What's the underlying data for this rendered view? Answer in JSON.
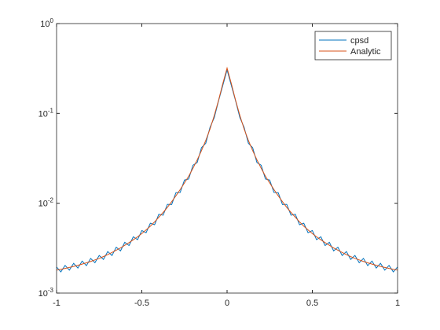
{
  "chart_data": {
    "type": "line",
    "log_y": true,
    "x": [
      -1,
      -0.975,
      -0.95,
      -0.925,
      -0.9,
      -0.875,
      -0.85,
      -0.825,
      -0.8,
      -0.775,
      -0.75,
      -0.725,
      -0.7,
      -0.675,
      -0.65,
      -0.625,
      -0.6,
      -0.575,
      -0.55,
      -0.525,
      -0.5,
      -0.475,
      -0.45,
      -0.425,
      -0.4,
      -0.375,
      -0.35,
      -0.325,
      -0.3,
      -0.275,
      -0.25,
      -0.225,
      -0.2,
      -0.175,
      -0.15,
      -0.125,
      -0.1,
      -0.075,
      -0.05,
      -0.025,
      0,
      0.025,
      0.05,
      0.075,
      0.1,
      0.125,
      0.15,
      0.175,
      0.2,
      0.225,
      0.25,
      0.275,
      0.3,
      0.325,
      0.35,
      0.375,
      0.4,
      0.425,
      0.45,
      0.475,
      0.5,
      0.525,
      0.55,
      0.575,
      0.6,
      0.625,
      0.65,
      0.675,
      0.7,
      0.725,
      0.75,
      0.775,
      0.8,
      0.825,
      0.85,
      0.875,
      0.9,
      0.925,
      0.95,
      0.975,
      1
    ],
    "series": [
      {
        "name": "cpsd",
        "color": "#0072bd",
        "values": [
          0.00195,
          0.00172,
          0.00203,
          0.0018,
          0.00214,
          0.0019,
          0.00227,
          0.00202,
          0.00243,
          0.00218,
          0.00262,
          0.00237,
          0.0029,
          0.00262,
          0.00324,
          0.00295,
          0.00367,
          0.00338,
          0.00423,
          0.00393,
          0.00497,
          0.0047,
          0.00599,
          0.00577,
          0.00756,
          0.00735,
          0.00972,
          0.00967,
          0.0131,
          0.0132,
          0.0181,
          0.0186,
          0.0265,
          0.0284,
          0.0416,
          0.0465,
          0.07,
          0.09,
          0.138,
          0.205,
          0.305,
          0.205,
          0.138,
          0.09,
          0.07,
          0.0465,
          0.0416,
          0.0284,
          0.0265,
          0.0186,
          0.0181,
          0.0132,
          0.0131,
          0.00967,
          0.00972,
          0.00735,
          0.00756,
          0.00577,
          0.00599,
          0.0047,
          0.00497,
          0.00393,
          0.00423,
          0.00338,
          0.00367,
          0.00295,
          0.00324,
          0.00262,
          0.0029,
          0.00237,
          0.00262,
          0.00218,
          0.00243,
          0.00202,
          0.00227,
          0.0019,
          0.00214,
          0.0018,
          0.00203,
          0.00172,
          0.00195
        ]
      },
      {
        "name": "Analytic",
        "color": "#d95319",
        "values": [
          0.0018,
          0.00184,
          0.00188,
          0.00193,
          0.00198,
          0.00204,
          0.0021,
          0.00217,
          0.00225,
          0.00234,
          0.00243,
          0.00255,
          0.00268,
          0.00283,
          0.003,
          0.00318,
          0.0034,
          0.00364,
          0.00392,
          0.00423,
          0.0046,
          0.00505,
          0.00555,
          0.0062,
          0.007,
          0.0079,
          0.009,
          0.0104,
          0.0121,
          0.0142,
          0.0168,
          0.02,
          0.0245,
          0.0305,
          0.0385,
          0.05,
          0.067,
          0.095,
          0.14,
          0.215,
          0.32,
          0.215,
          0.14,
          0.095,
          0.067,
          0.05,
          0.0385,
          0.0305,
          0.0245,
          0.02,
          0.0168,
          0.0142,
          0.0121,
          0.0104,
          0.009,
          0.0079,
          0.007,
          0.0062,
          0.00555,
          0.00505,
          0.0046,
          0.00423,
          0.00392,
          0.00364,
          0.0034,
          0.00318,
          0.003,
          0.00283,
          0.00268,
          0.00255,
          0.00243,
          0.00234,
          0.00225,
          0.00217,
          0.0021,
          0.00204,
          0.00198,
          0.00193,
          0.00188,
          0.00184,
          0.0018
        ]
      }
    ],
    "xlim": [
      -1,
      1
    ],
    "xticks": [
      -1,
      -0.5,
      0,
      0.5,
      1
    ],
    "ylim": [
      0.001,
      1
    ],
    "yticks": [
      {
        "value": 0.001,
        "label": "10^-3"
      },
      {
        "value": 0.01,
        "label": "10^-2"
      },
      {
        "value": 0.1,
        "label": "10^-1"
      },
      {
        "value": 1,
        "label": "10^0"
      }
    ],
    "legend": "top-right"
  }
}
